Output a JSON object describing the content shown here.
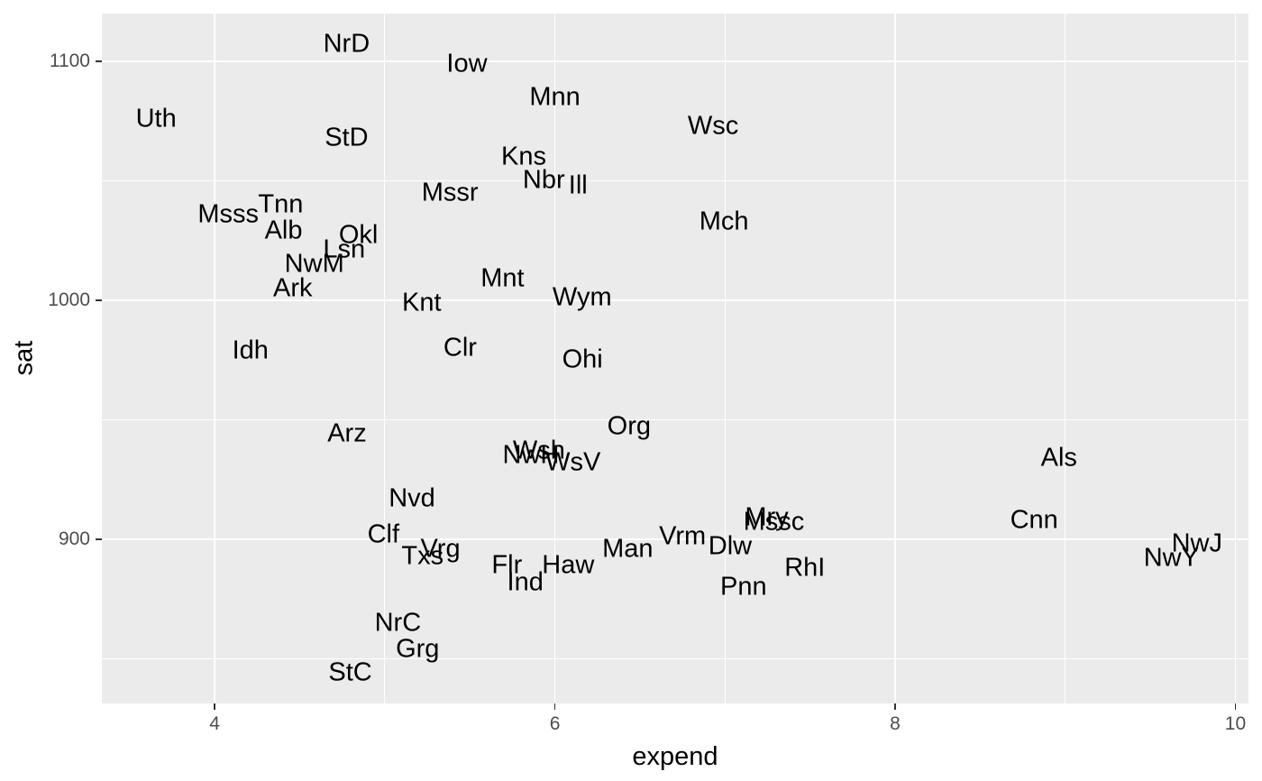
{
  "chart_data": {
    "type": "scatter",
    "mark": "text-labels",
    "title": "",
    "xlabel": "expend",
    "ylabel": "sat",
    "x_ticks": [
      4,
      6,
      8,
      10
    ],
    "y_ticks": [
      900,
      1000,
      1100
    ],
    "x_minor_ticks": [
      5,
      7,
      9
    ],
    "y_minor_ticks": [
      850,
      950,
      1050
    ],
    "xlim": [
      3.337,
      10.077
    ],
    "ylim": [
      831.3,
      1120.0
    ],
    "grid": "on",
    "legend": "none",
    "theme": {
      "panel_bg": "#EBEBEB",
      "grid_color": "#FFFFFF",
      "axis_text_color": "#4D4D4D",
      "tick_color": "#333333",
      "label_color": "#000000"
    },
    "points": [
      {
        "label": "Uth",
        "expend": 3.656,
        "sat": 1076
      },
      {
        "label": "Msss",
        "expend": 4.08,
        "sat": 1036
      },
      {
        "label": "Idh",
        "expend": 4.21,
        "sat": 979
      },
      {
        "label": "Tnn",
        "expend": 4.388,
        "sat": 1040
      },
      {
        "label": "Alb",
        "expend": 4.405,
        "sat": 1029
      },
      {
        "label": "Ark",
        "expend": 4.459,
        "sat": 1005
      },
      {
        "label": "NwM",
        "expend": 4.586,
        "sat": 1015
      },
      {
        "label": "Lsn",
        "expend": 4.761,
        "sat": 1021
      },
      {
        "label": "NrD",
        "expend": 4.775,
        "sat": 1107
      },
      {
        "label": "StD",
        "expend": 4.775,
        "sat": 1068
      },
      {
        "label": "Arz",
        "expend": 4.778,
        "sat": 944
      },
      {
        "label": "StC",
        "expend": 4.797,
        "sat": 844
      },
      {
        "label": "Okl",
        "expend": 4.845,
        "sat": 1027
      },
      {
        "label": "Clf",
        "expend": 4.992,
        "sat": 902
      },
      {
        "label": "NrC",
        "expend": 5.077,
        "sat": 865
      },
      {
        "label": "Nvd",
        "expend": 5.16,
        "sat": 917
      },
      {
        "label": "Grg",
        "expend": 5.193,
        "sat": 854
      },
      {
        "label": "Knt",
        "expend": 5.217,
        "sat": 999
      },
      {
        "label": "Txs",
        "expend": 5.222,
        "sat": 893
      },
      {
        "label": "Vrg",
        "expend": 5.327,
        "sat": 896
      },
      {
        "label": "Mssr",
        "expend": 5.383,
        "sat": 1045
      },
      {
        "label": "Clr",
        "expend": 5.443,
        "sat": 980
      },
      {
        "label": "Iow",
        "expend": 5.483,
        "sat": 1099
      },
      {
        "label": "Mnt",
        "expend": 5.692,
        "sat": 1009
      },
      {
        "label": "Flr",
        "expend": 5.718,
        "sat": 889
      },
      {
        "label": "Kns",
        "expend": 5.817,
        "sat": 1060
      },
      {
        "label": "Ind",
        "expend": 5.826,
        "sat": 882
      },
      {
        "label": "NwH",
        "expend": 5.859,
        "sat": 935
      },
      {
        "label": "Wsh",
        "expend": 5.906,
        "sat": 937
      },
      {
        "label": "Nbr",
        "expend": 5.935,
        "sat": 1050
      },
      {
        "label": "Mnn",
        "expend": 6.0,
        "sat": 1085
      },
      {
        "label": "Haw",
        "expend": 6.078,
        "sat": 889
      },
      {
        "label": "WsV",
        "expend": 6.107,
        "sat": 932
      },
      {
        "label": "Ill",
        "expend": 6.136,
        "sat": 1048
      },
      {
        "label": "Wym",
        "expend": 6.16,
        "sat": 1001
      },
      {
        "label": "Ohi",
        "expend": 6.162,
        "sat": 975
      },
      {
        "label": "Man",
        "expend": 6.428,
        "sat": 896
      },
      {
        "label": "Org",
        "expend": 6.436,
        "sat": 947
      },
      {
        "label": "Vrm",
        "expend": 6.75,
        "sat": 901
      },
      {
        "label": "Wsc",
        "expend": 6.93,
        "sat": 1073
      },
      {
        "label": "Mch",
        "expend": 6.994,
        "sat": 1033
      },
      {
        "label": "Dlw",
        "expend": 7.03,
        "sat": 897
      },
      {
        "label": "Pnn",
        "expend": 7.109,
        "sat": 880
      },
      {
        "label": "Mry",
        "expend": 7.245,
        "sat": 909
      },
      {
        "label": "Mssc",
        "expend": 7.287,
        "sat": 907
      },
      {
        "label": "RhI",
        "expend": 7.469,
        "sat": 888
      },
      {
        "label": "Cnn",
        "expend": 8.817,
        "sat": 908
      },
      {
        "label": "Als",
        "expend": 8.963,
        "sat": 934
      },
      {
        "label": "NwY",
        "expend": 9.623,
        "sat": 892
      },
      {
        "label": "NwJ",
        "expend": 9.774,
        "sat": 898
      }
    ]
  }
}
